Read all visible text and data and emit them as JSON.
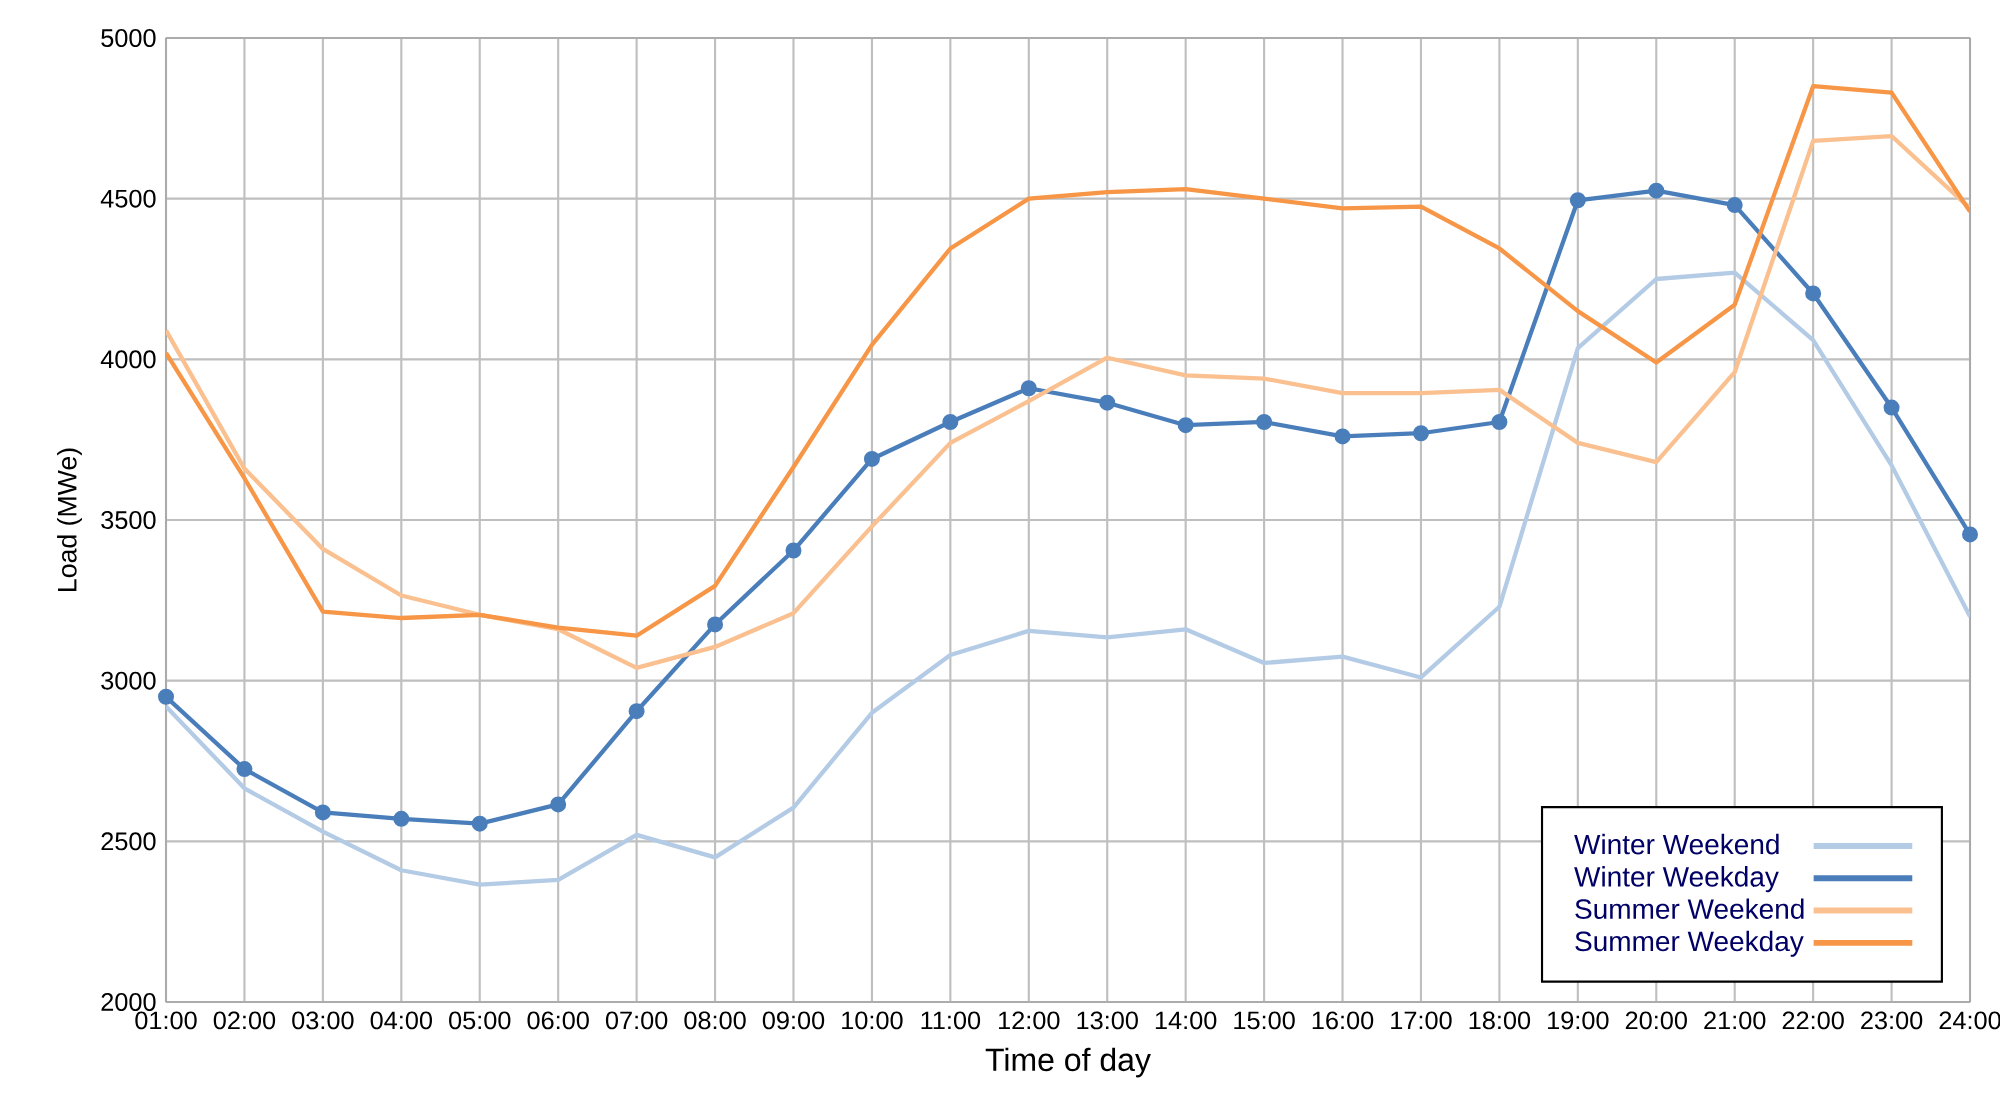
{
  "chart_data": {
    "type": "line",
    "xlabel": "Time of day",
    "ylabel": "Load (MWe)",
    "categories": [
      "01:00",
      "02:00",
      "03:00",
      "04:00",
      "05:00",
      "06:00",
      "07:00",
      "08:00",
      "09:00",
      "10:00",
      "11:00",
      "12:00",
      "13:00",
      "14:00",
      "15:00",
      "16:00",
      "17:00",
      "18:00",
      "19:00",
      "20:00",
      "21:00",
      "22:00",
      "23:00",
      "24:00"
    ],
    "ylim": [
      2000,
      5000
    ],
    "yticks": [
      2000,
      2500,
      3000,
      3500,
      4000,
      4500,
      5000
    ],
    "grid": true,
    "legend": "bottom right",
    "line_style": "solid",
    "series": [
      {
        "name": "Winter Weekend",
        "color": "#b4cbe6",
        "marker": "none",
        "values": [
          2920,
          2665,
          2530,
          2410,
          2365,
          2380,
          2520,
          2450,
          2605,
          2900,
          3080,
          3155,
          3135,
          3160,
          3055,
          3075,
          3010,
          3230,
          4035,
          4250,
          4270,
          4060,
          3670,
          3200
        ]
      },
      {
        "name": "Winter Weekday",
        "color": "#4a7ebb",
        "marker": "circle",
        "values": [
          2950,
          2725,
          2590,
          2570,
          2555,
          2615,
          2905,
          3175,
          3405,
          3690,
          3805,
          3910,
          3865,
          3795,
          3805,
          3760,
          3770,
          3805,
          4495,
          4525,
          4480,
          4205,
          3850,
          3455
        ]
      },
      {
        "name": "Summer Weekend",
        "color": "#fac090",
        "marker": "none",
        "values": [
          4090,
          3660,
          3410,
          3265,
          3205,
          3160,
          3040,
          3105,
          3210,
          3480,
          3740,
          3870,
          4005,
          3950,
          3940,
          3895,
          3895,
          3905,
          3740,
          3680,
          3960,
          4680,
          4695,
          4470
        ]
      },
      {
        "name": "Summer Weekday",
        "color": "#f79646",
        "marker": "none",
        "values": [
          4020,
          3630,
          3215,
          3195,
          3205,
          3165,
          3140,
          3295,
          3665,
          4045,
          4345,
          4500,
          4520,
          4530,
          4500,
          4470,
          4475,
          4345,
          4150,
          3990,
          4170,
          4850,
          4830,
          4460
        ]
      }
    ]
  }
}
